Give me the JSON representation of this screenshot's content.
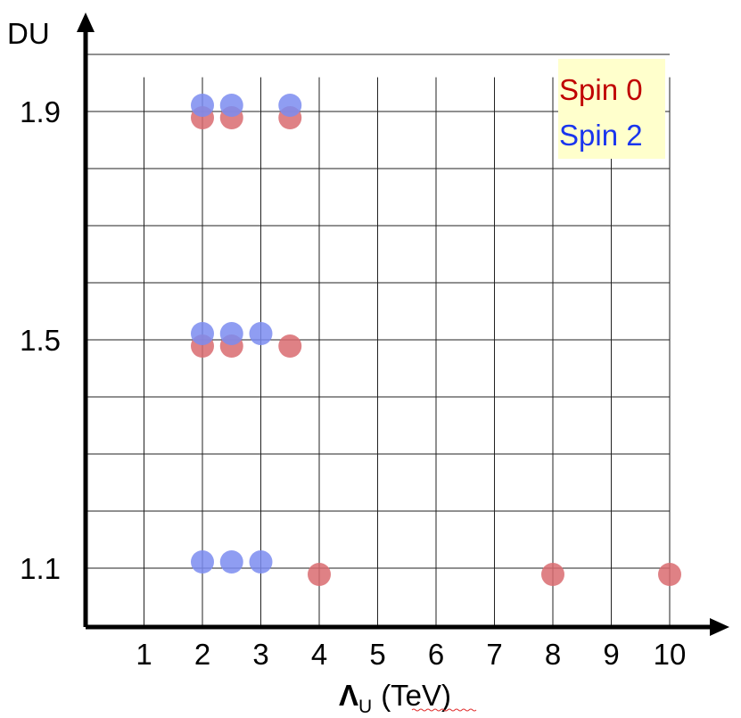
{
  "chart_data": {
    "type": "scatter",
    "xlabel": "(TeV)",
    "xlabel_symbol": "Λ",
    "xlabel_subscript": "U",
    "ylabel": "DU",
    "xticks": [
      "1",
      "2",
      "3",
      "4",
      "5",
      "6",
      "7",
      "8",
      "9",
      "10"
    ],
    "yticks": [
      "1.1",
      "1.5",
      "1.9"
    ],
    "xlim": [
      0,
      10.7
    ],
    "ylim": [
      1.0,
      1.96
    ],
    "grid": true,
    "legend_position": "top-right",
    "series": [
      {
        "name": "Spin 0",
        "color": "#d96b70",
        "points": [
          {
            "x": 2,
            "y": 1.9
          },
          {
            "x": 2.5,
            "y": 1.9
          },
          {
            "x": 3.5,
            "y": 1.9
          },
          {
            "x": 2,
            "y": 1.5
          },
          {
            "x": 2.5,
            "y": 1.5
          },
          {
            "x": 3.5,
            "y": 1.5
          },
          {
            "x": 4,
            "y": 1.1
          },
          {
            "x": 8,
            "y": 1.1
          },
          {
            "x": 10,
            "y": 1.1
          }
        ]
      },
      {
        "name": "Spin 2",
        "color": "#7b8cf0",
        "points": [
          {
            "x": 2,
            "y": 1.9
          },
          {
            "x": 2.5,
            "y": 1.9
          },
          {
            "x": 3.5,
            "y": 1.9
          },
          {
            "x": 2,
            "y": 1.5
          },
          {
            "x": 2.5,
            "y": 1.5
          },
          {
            "x": 3,
            "y": 1.5
          },
          {
            "x": 2,
            "y": 1.1
          },
          {
            "x": 2.5,
            "y": 1.1
          },
          {
            "x": 3,
            "y": 1.1
          }
        ]
      }
    ],
    "legend": {
      "entries": [
        {
          "label": "Spin 0",
          "color": "#c00000"
        },
        {
          "label": "Spin 2",
          "color": "#1a35ee"
        }
      ],
      "background": "#ffffcc"
    }
  }
}
